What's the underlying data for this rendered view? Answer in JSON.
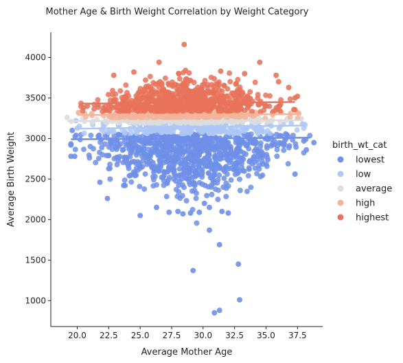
{
  "chart_data": {
    "type": "scatter",
    "title": "Mother Age & Birth Weight Correlation by Weight Category",
    "xlabel": "Average Mother Age",
    "ylabel": "Average Birth Weight",
    "xlim": [
      17.9,
      39.5
    ],
    "ylim": [
      680,
      4310
    ],
    "xticks": [
      "20.0",
      "22.5",
      "25.0",
      "27.5",
      "30.0",
      "32.5",
      "35.0",
      "37.5"
    ],
    "yticks": [
      "1000",
      "1500",
      "2000",
      "2500",
      "3000",
      "3500",
      "4000"
    ],
    "grid": false,
    "legend_placement": "right",
    "legend_title": "birth_wt_cat",
    "series": [
      {
        "name": "lowest",
        "color": "#6f8fe8",
        "band": [
          2200,
          3060
        ],
        "fit": [
          2990,
          3010
        ],
        "x_range": [
          19.5,
          38.5
        ],
        "outliers": [
          [
            19.6,
            3100
          ],
          [
            19.5,
            2780
          ],
          [
            19.8,
            2780
          ],
          [
            21.8,
            2460
          ],
          [
            22.4,
            2260
          ],
          [
            23.8,
            2420
          ],
          [
            25.0,
            2050
          ],
          [
            26.3,
            2150
          ],
          [
            27.3,
            2090
          ],
          [
            28.0,
            2100
          ],
          [
            28.4,
            2070
          ],
          [
            29.0,
            2080
          ],
          [
            29.7,
            2090
          ],
          [
            30.1,
            2200
          ],
          [
            30.5,
            2150
          ],
          [
            31.5,
            2100
          ],
          [
            32.0,
            2080
          ],
          [
            29.2,
            1370
          ],
          [
            30.5,
            1870
          ],
          [
            31.3,
            1690
          ],
          [
            32.8,
            1450
          ],
          [
            31.3,
            880
          ],
          [
            30.9,
            850
          ],
          [
            32.9,
            1010
          ],
          [
            37.3,
            2560
          ],
          [
            38.8,
            2950
          ],
          [
            38.2,
            2860
          ],
          [
            38.0,
            2970
          ]
        ]
      },
      {
        "name": "low",
        "color": "#aec8f5",
        "band": [
          3060,
          3190
        ],
        "fit": [
          3120,
          3160
        ],
        "x_range": [
          19.7,
          38.0
        ],
        "outliers": [
          [
            19.9,
            3220
          ],
          [
            38.1,
            3170
          ],
          [
            37.9,
            3180
          ]
        ]
      },
      {
        "name": "average",
        "color": "#dcdcdc",
        "band": [
          3190,
          3250
        ],
        "fit": [
          3215,
          3225
        ],
        "x_range": [
          19.2,
          37.8
        ],
        "outliers": [
          [
            19.2,
            3260
          ],
          [
            37.8,
            3245
          ]
        ]
      },
      {
        "name": "high",
        "color": "#f3b49a",
        "band": [
          3250,
          3330
        ],
        "fit": [
          3290,
          3300
        ],
        "x_range": [
          20.0,
          37.5
        ],
        "outliers": [
          [
            20.1,
            3320
          ],
          [
            37.6,
            3310
          ]
        ]
      },
      {
        "name": "highest",
        "color": "#e8735a",
        "band": [
          3330,
          3800
        ],
        "fit": [
          3430,
          3450
        ],
        "x_range": [
          20.3,
          37.3
        ],
        "outliers": [
          [
            28.5,
            4160
          ],
          [
            26.5,
            3940
          ],
          [
            34.5,
            3940
          ],
          [
            20.8,
            3400
          ],
          [
            20.5,
            3380
          ],
          [
            22.9,
            3780
          ],
          [
            24.5,
            3820
          ],
          [
            28.6,
            3840
          ],
          [
            31.4,
            3830
          ],
          [
            33.3,
            3800
          ],
          [
            35.8,
            3780
          ],
          [
            37.3,
            3500
          ],
          [
            37.5,
            3520
          ],
          [
            36.8,
            3630
          ],
          [
            36.0,
            3700
          ]
        ]
      }
    ]
  }
}
